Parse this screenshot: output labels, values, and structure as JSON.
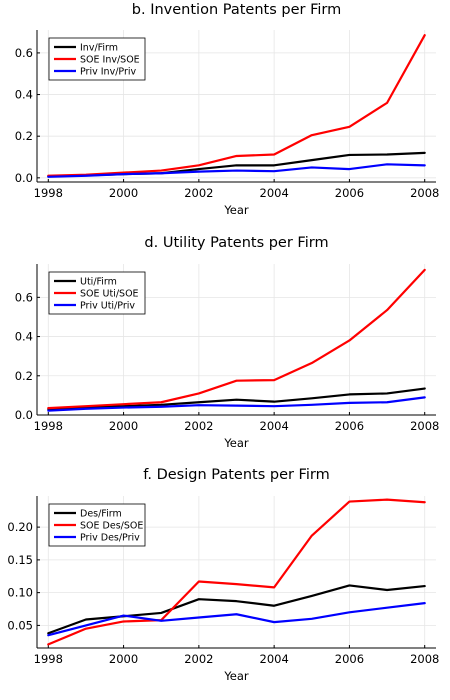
{
  "chart_data": [
    {
      "type": "line",
      "title": "b. Invention Patents per Firm",
      "xlabel": "Year",
      "ylabel": "",
      "x": [
        1998,
        1999,
        2000,
        2001,
        2002,
        2003,
        2004,
        2005,
        2006,
        2007,
        2008
      ],
      "xticks": [
        1998,
        2000,
        2002,
        2004,
        2006,
        2008
      ],
      "yticks": [
        0.0,
        0.2,
        0.4,
        0.6
      ],
      "ytick_labels": [
        "0.0",
        "0.2",
        "0.4",
        "0.6"
      ],
      "xlim": [
        1997.7,
        2008.3
      ],
      "ylim": [
        -0.02,
        0.71
      ],
      "legend": "top-left",
      "grid": true,
      "series": [
        {
          "name": "Inv/Firm",
          "color": "#000000",
          "values": [
            0.008,
            0.012,
            0.018,
            0.022,
            0.042,
            0.06,
            0.06,
            0.085,
            0.11,
            0.112,
            0.12
          ]
        },
        {
          "name": "SOE Inv/SOE",
          "color": "#ff0000",
          "values": [
            0.01,
            0.015,
            0.025,
            0.035,
            0.06,
            0.105,
            0.112,
            0.205,
            0.245,
            0.36,
            0.685
          ]
        },
        {
          "name": "Priv Inv/Priv",
          "color": "#0000ff",
          "values": [
            0.005,
            0.01,
            0.018,
            0.022,
            0.03,
            0.035,
            0.032,
            0.05,
            0.042,
            0.065,
            0.06
          ]
        }
      ]
    },
    {
      "type": "line",
      "title": "d. Utility Patents per Firm",
      "xlabel": "Year",
      "ylabel": "",
      "x": [
        1998,
        1999,
        2000,
        2001,
        2002,
        2003,
        2004,
        2005,
        2006,
        2007,
        2008
      ],
      "xticks": [
        1998,
        2000,
        2002,
        2004,
        2006,
        2008
      ],
      "yticks": [
        0.0,
        0.2,
        0.4,
        0.6
      ],
      "ytick_labels": [
        "0.0",
        "0.2",
        "0.4",
        "0.6"
      ],
      "xlim": [
        1997.7,
        2008.3
      ],
      "ylim": [
        0.0,
        0.77
      ],
      "legend": "top-left",
      "grid": true,
      "series": [
        {
          "name": "Uti/Firm",
          "color": "#000000",
          "values": [
            0.03,
            0.038,
            0.045,
            0.052,
            0.065,
            0.078,
            0.068,
            0.085,
            0.105,
            0.11,
            0.135
          ]
        },
        {
          "name": "SOE Uti/SOE",
          "color": "#ff0000",
          "values": [
            0.035,
            0.045,
            0.055,
            0.065,
            0.11,
            0.175,
            0.178,
            0.265,
            0.38,
            0.535,
            0.74
          ]
        },
        {
          "name": "Priv Uti/Priv",
          "color": "#0000ff",
          "values": [
            0.022,
            0.032,
            0.038,
            0.042,
            0.05,
            0.048,
            0.045,
            0.052,
            0.062,
            0.065,
            0.09
          ]
        }
      ]
    },
    {
      "type": "line",
      "title": "f. Design Patents per Firm",
      "xlabel": "Year",
      "ylabel": "",
      "x": [
        1998,
        1999,
        2000,
        2001,
        2002,
        2003,
        2004,
        2005,
        2006,
        2007,
        2008
      ],
      "xticks": [
        1998,
        2000,
        2002,
        2004,
        2006,
        2008
      ],
      "yticks": [
        0.05,
        0.1,
        0.15,
        0.2
      ],
      "ytick_labels": [
        "0.05",
        "0.10",
        "0.15",
        "0.20"
      ],
      "xlim": [
        1997.7,
        2008.3
      ],
      "ylim": [
        0.0155,
        0.2475
      ],
      "legend": "top-left",
      "grid": true,
      "series": [
        {
          "name": "Des/Firm",
          "color": "#000000",
          "values": [
            0.038,
            0.059,
            0.064,
            0.069,
            0.09,
            0.087,
            0.08,
            0.095,
            0.111,
            0.104,
            0.11
          ]
        },
        {
          "name": "SOE Des/SOE",
          "color": "#ff0000",
          "values": [
            0.021,
            0.045,
            0.056,
            0.058,
            0.117,
            0.113,
            0.108,
            0.187,
            0.239,
            0.242,
            0.238
          ]
        },
        {
          "name": "Priv Des/Priv",
          "color": "#0000ff",
          "values": [
            0.035,
            0.05,
            0.065,
            0.057,
            0.062,
            0.067,
            0.055,
            0.06,
            0.07,
            0.077,
            0.084
          ]
        }
      ]
    }
  ]
}
